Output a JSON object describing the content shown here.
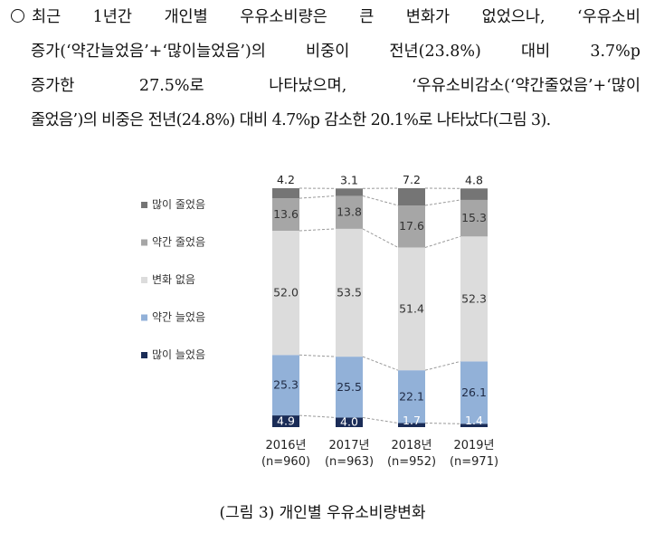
{
  "paragraph": {
    "line1": "최근 1년간 개인별 우유소비량은 큰 변화가 없었으나, ‘우유소비",
    "line2": "증가(‘약간늘었음’+‘많이늘었음’)의 비중이 전년(23.8%) 대비 3.7%p",
    "line3": "증가한 27.5%로 나타났으며, ‘우유소비감소(‘약간줄었음’+‘많이",
    "line4": "줄었음’)의 비중은 전년(24.8%) 대비 4.7%p 감소한 20.1%로 나타났다(그림 3)."
  },
  "chart_data": {
    "type": "bar",
    "stacked": true,
    "percent": true,
    "categories": [
      "2016년\n(n=960)",
      "2017년\n(n=963)",
      "2018년\n(n=952)",
      "2019년\n(n=971)"
    ],
    "series": [
      {
        "name": "많이 늘었음",
        "color": "#1a2c57",
        "values": [
          4.9,
          4.0,
          1.7,
          1.4
        ]
      },
      {
        "name": "약간 늘었음",
        "color": "#92b1d8",
        "values": [
          25.3,
          25.5,
          22.1,
          26.1
        ]
      },
      {
        "name": "변화 없음",
        "color": "#dcdcdc",
        "values": [
          52.0,
          53.5,
          51.4,
          52.3
        ]
      },
      {
        "name": "약간 줄었음",
        "color": "#a6a6a6",
        "values": [
          13.6,
          13.8,
          17.6,
          15.3
        ]
      },
      {
        "name": "많이 줄었음",
        "color": "#757575",
        "values": [
          4.2,
          3.1,
          7.2,
          4.8
        ]
      }
    ],
    "legend_order": [
      "많이 줄었음",
      "약간 줄었음",
      "변화 없음",
      "약간 늘었음",
      "많이 늘었음"
    ],
    "legend_position": "left",
    "ylim": [
      0,
      100
    ],
    "grid": false
  },
  "caption": "(그림 3) 개인별 우유소비량변화"
}
